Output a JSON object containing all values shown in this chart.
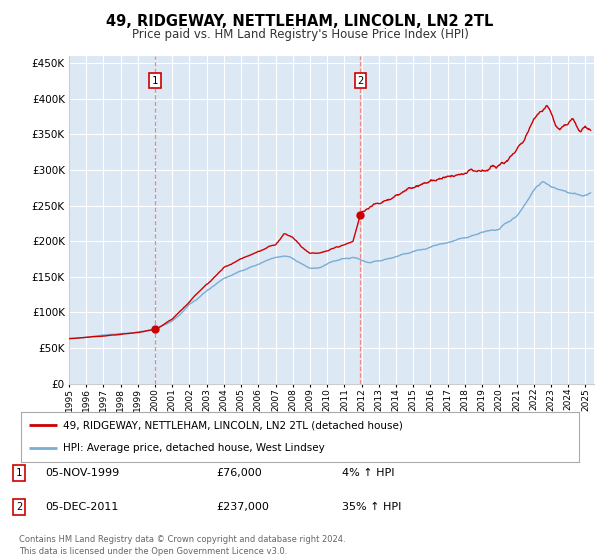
{
  "title": "49, RIDGEWAY, NETTLEHAM, LINCOLN, LN2 2TL",
  "subtitle": "Price paid vs. HM Land Registry's House Price Index (HPI)",
  "background_color": "#dde8f5",
  "outer_bg_color": "#ffffff",
  "line1_color": "#cc0000",
  "line2_color": "#7aadd4",
  "purchase1_date_num": 2000.0,
  "purchase1_price": 76000,
  "purchase2_date_num": 2011.92,
  "purchase2_price": 237000,
  "legend1": "49, RIDGEWAY, NETTLEHAM, LINCOLN, LN2 2TL (detached house)",
  "legend2": "HPI: Average price, detached house, West Lindsey",
  "annotation1_label": "1",
  "annotation1_date": "05-NOV-1999",
  "annotation1_price": "£76,000",
  "annotation1_hpi": "4% ↑ HPI",
  "annotation2_label": "2",
  "annotation2_date": "05-DEC-2011",
  "annotation2_price": "£237,000",
  "annotation2_hpi": "35% ↑ HPI",
  "footer": "Contains HM Land Registry data © Crown copyright and database right 2024.\nThis data is licensed under the Open Government Licence v3.0.",
  "ylim": [
    0,
    460000
  ],
  "xlim_start": 1995.0,
  "xlim_end": 2025.5,
  "hpi_keypoints": [
    [
      1995.0,
      63000
    ],
    [
      1996.0,
      65000
    ],
    [
      1997.0,
      68000
    ],
    [
      1998.0,
      70000
    ],
    [
      1999.0,
      72000
    ],
    [
      2000.0,
      76000
    ],
    [
      2001.0,
      88000
    ],
    [
      2002.0,
      110000
    ],
    [
      2003.0,
      130000
    ],
    [
      2004.0,
      148000
    ],
    [
      2005.0,
      158000
    ],
    [
      2006.0,
      168000
    ],
    [
      2007.0,
      178000
    ],
    [
      2007.5,
      180000
    ],
    [
      2008.0,
      175000
    ],
    [
      2008.5,
      168000
    ],
    [
      2009.0,
      162000
    ],
    [
      2009.5,
      163000
    ],
    [
      2010.0,
      168000
    ],
    [
      2010.5,
      172000
    ],
    [
      2011.0,
      175000
    ],
    [
      2011.5,
      178000
    ],
    [
      2012.0,
      173000
    ],
    [
      2012.5,
      170000
    ],
    [
      2013.0,
      172000
    ],
    [
      2014.0,
      178000
    ],
    [
      2015.0,
      185000
    ],
    [
      2016.0,
      192000
    ],
    [
      2017.0,
      198000
    ],
    [
      2018.0,
      205000
    ],
    [
      2019.0,
      212000
    ],
    [
      2020.0,
      218000
    ],
    [
      2021.0,
      235000
    ],
    [
      2022.0,
      270000
    ],
    [
      2022.5,
      283000
    ],
    [
      2023.0,
      278000
    ],
    [
      2023.5,
      272000
    ],
    [
      2024.0,
      268000
    ],
    [
      2024.5,
      265000
    ],
    [
      2025.3,
      268000
    ]
  ],
  "red_keypoints_pre_p1": [
    [
      1995.0,
      63000
    ],
    [
      1996.0,
      65000
    ],
    [
      1997.0,
      67000
    ],
    [
      1998.0,
      69000
    ],
    [
      1999.0,
      72000
    ],
    [
      2000.0,
      76000
    ]
  ],
  "red_keypoints_p1_p2": [
    [
      2000.0,
      76000
    ],
    [
      2001.0,
      90000
    ],
    [
      2002.0,
      115000
    ],
    [
      2003.0,
      140000
    ],
    [
      2004.0,
      163000
    ],
    [
      2005.0,
      175000
    ],
    [
      2006.0,
      185000
    ],
    [
      2007.0,
      195000
    ],
    [
      2007.5,
      210000
    ],
    [
      2008.0,
      205000
    ],
    [
      2008.5,
      192000
    ],
    [
      2009.0,
      183000
    ],
    [
      2009.5,
      182000
    ],
    [
      2010.0,
      187000
    ],
    [
      2010.5,
      192000
    ],
    [
      2011.0,
      195000
    ],
    [
      2011.5,
      200000
    ],
    [
      2011.92,
      237000
    ]
  ],
  "red_keypoints_post_p2": [
    [
      2011.92,
      237000
    ],
    [
      2012.0,
      242000
    ],
    [
      2012.5,
      248000
    ],
    [
      2013.0,
      253000
    ],
    [
      2013.5,
      258000
    ],
    [
      2014.0,
      263000
    ],
    [
      2014.5,
      270000
    ],
    [
      2015.0,
      276000
    ],
    [
      2015.5,
      280000
    ],
    [
      2016.0,
      283000
    ],
    [
      2016.5,
      287000
    ],
    [
      2017.0,
      290000
    ],
    [
      2017.5,
      293000
    ],
    [
      2018.0,
      296000
    ],
    [
      2018.5,
      298000
    ],
    [
      2019.0,
      300000
    ],
    [
      2019.5,
      303000
    ],
    [
      2020.0,
      308000
    ],
    [
      2020.5,
      315000
    ],
    [
      2021.0,
      328000
    ],
    [
      2021.5,
      345000
    ],
    [
      2022.0,
      368000
    ],
    [
      2022.5,
      385000
    ],
    [
      2022.75,
      392000
    ],
    [
      2023.0,
      378000
    ],
    [
      2023.25,
      365000
    ],
    [
      2023.5,
      358000
    ],
    [
      2023.75,
      362000
    ],
    [
      2024.0,
      368000
    ],
    [
      2024.25,
      372000
    ],
    [
      2024.5,
      362000
    ],
    [
      2024.75,
      355000
    ],
    [
      2025.0,
      360000
    ],
    [
      2025.3,
      358000
    ]
  ]
}
